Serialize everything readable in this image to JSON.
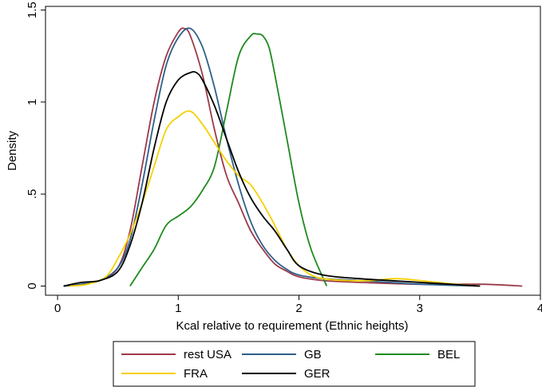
{
  "chart_data": {
    "type": "line",
    "title": "",
    "xlabel": "Kcal relative to requirement (Ethnic heights)",
    "ylabel": "Density",
    "xlim": [
      -0.1,
      4.0
    ],
    "ylim": [
      -0.05,
      1.52
    ],
    "xticks": [
      0,
      1,
      2,
      3,
      4
    ],
    "xtick_labels": [
      "0",
      "1",
      "2",
      "3",
      "4"
    ],
    "yticks": [
      0,
      0.5,
      1,
      1.5
    ],
    "ytick_labels": [
      "0",
      ".5",
      "1",
      "1.5"
    ],
    "grid": false,
    "legend_position": "bottom",
    "series": [
      {
        "name": "rest USA",
        "color": "#9b3a4a",
        "x": [
          0.05,
          0.2,
          0.35,
          0.5,
          0.6,
          0.7,
          0.8,
          0.9,
          1.0,
          1.05,
          1.1,
          1.2,
          1.3,
          1.4,
          1.5,
          1.6,
          1.7,
          1.8,
          1.9,
          2.0,
          2.2,
          2.5,
          3.0,
          3.5,
          3.85
        ],
        "y": [
          0.0,
          0.01,
          0.03,
          0.1,
          0.3,
          0.65,
          1.0,
          1.25,
          1.38,
          1.4,
          1.36,
          1.15,
          0.85,
          0.6,
          0.45,
          0.3,
          0.2,
          0.12,
          0.08,
          0.05,
          0.03,
          0.02,
          0.01,
          0.01,
          0.0
        ]
      },
      {
        "name": "GB",
        "color": "#2e5f8a",
        "x": [
          0.05,
          0.2,
          0.35,
          0.5,
          0.6,
          0.7,
          0.8,
          0.9,
          1.0,
          1.1,
          1.2,
          1.3,
          1.4,
          1.5,
          1.6,
          1.7,
          1.8,
          1.9,
          2.0,
          2.2,
          2.5,
          3.0,
          3.5
        ],
        "y": [
          0.0,
          0.01,
          0.03,
          0.1,
          0.25,
          0.55,
          0.9,
          1.2,
          1.35,
          1.4,
          1.3,
          1.08,
          0.8,
          0.55,
          0.35,
          0.22,
          0.14,
          0.09,
          0.06,
          0.04,
          0.03,
          0.01,
          0.0
        ]
      },
      {
        "name": "BEL",
        "color": "#1e8a1e",
        "x": [
          0.6,
          0.7,
          0.8,
          0.9,
          1.0,
          1.1,
          1.2,
          1.3,
          1.4,
          1.5,
          1.6,
          1.65,
          1.7,
          1.75,
          1.8,
          1.9,
          2.0,
          2.1,
          2.23
        ],
        "y": [
          0.0,
          0.1,
          0.2,
          0.33,
          0.38,
          0.43,
          0.52,
          0.65,
          0.95,
          1.25,
          1.36,
          1.37,
          1.36,
          1.3,
          1.15,
          0.8,
          0.45,
          0.2,
          0.0
        ]
      },
      {
        "name": "FRA",
        "color": "#f5d000",
        "x": [
          0.1,
          0.25,
          0.4,
          0.5,
          0.6,
          0.7,
          0.8,
          0.9,
          1.0,
          1.1,
          1.2,
          1.3,
          1.4,
          1.5,
          1.6,
          1.7,
          1.8,
          1.9,
          2.0,
          2.1,
          2.2,
          2.4,
          2.6,
          2.8,
          3.0,
          3.3,
          3.5
        ],
        "y": [
          0.0,
          0.01,
          0.05,
          0.15,
          0.28,
          0.45,
          0.65,
          0.85,
          0.92,
          0.95,
          0.88,
          0.78,
          0.68,
          0.6,
          0.55,
          0.45,
          0.33,
          0.2,
          0.11,
          0.06,
          0.04,
          0.03,
          0.03,
          0.04,
          0.03,
          0.01,
          0.0
        ]
      },
      {
        "name": "GER",
        "color": "#000000",
        "x": [
          0.05,
          0.2,
          0.35,
          0.5,
          0.6,
          0.7,
          0.8,
          0.9,
          1.0,
          1.1,
          1.15,
          1.2,
          1.3,
          1.4,
          1.5,
          1.6,
          1.7,
          1.8,
          1.9,
          2.0,
          2.2,
          2.5,
          3.0,
          3.5
        ],
        "y": [
          0.0,
          0.02,
          0.03,
          0.08,
          0.22,
          0.45,
          0.75,
          1.0,
          1.12,
          1.16,
          1.16,
          1.12,
          0.98,
          0.8,
          0.62,
          0.48,
          0.38,
          0.3,
          0.2,
          0.11,
          0.06,
          0.04,
          0.02,
          0.0
        ]
      }
    ]
  }
}
